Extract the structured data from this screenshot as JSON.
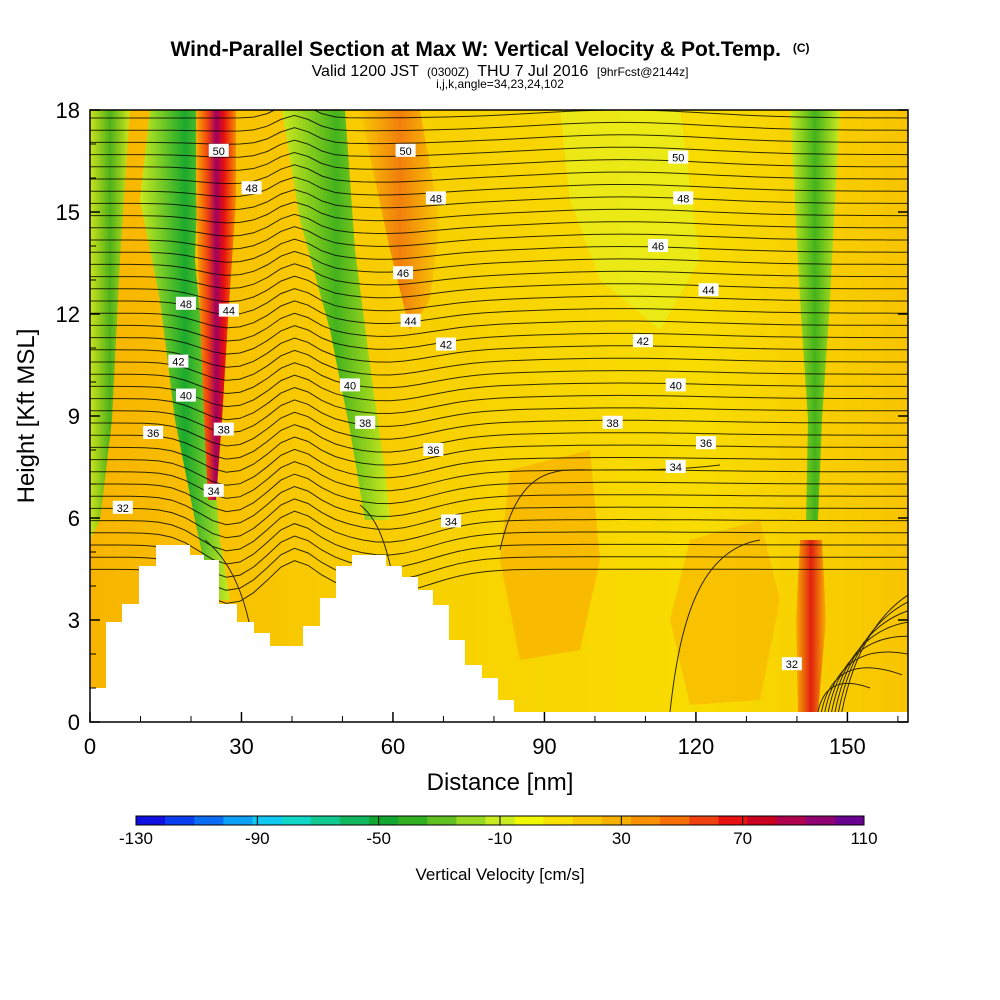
{
  "header": {
    "title": "Wind-Parallel Section at Max W: Vertical Velocity & Pot.Temp.",
    "copyright": "(C)",
    "valid_prefix": "Valid 1200 JST",
    "valid_utc": "(0300Z)",
    "valid_date": "THU 7 Jul 2016",
    "forecast": "[9hrFcst@2144z]",
    "indices": "i,j,k,angle=34,23,24,102"
  },
  "chart_data": {
    "type": "heatmap",
    "xlabel": "Distance [nm]",
    "ylabel": "Height [Kft MSL]",
    "xlim": [
      0,
      162
    ],
    "ylim": [
      0,
      18
    ],
    "x_ticks": [
      0,
      30,
      60,
      90,
      120,
      150
    ],
    "y_ticks": [
      0,
      3,
      6,
      9,
      12,
      15,
      18
    ],
    "colorbar": {
      "title": "Vertical Velocity [cm/s]",
      "min": -130,
      "max": 110,
      "step": 10,
      "tick_labels": [
        "-130",
        "-90",
        "-50",
        "-10",
        "30",
        "70",
        "110"
      ],
      "colors": [
        "#1010e0",
        "#0a3cf0",
        "#0a6cf5",
        "#0aa0f5",
        "#10c8f0",
        "#10d8c8",
        "#10c890",
        "#10b860",
        "#10a830",
        "#30b020",
        "#60c020",
        "#98d820",
        "#c8ec20",
        "#f0f800",
        "#f8e000",
        "#f8c800",
        "#f8b000",
        "#f89000",
        "#f87000",
        "#f04010",
        "#e81010",
        "#c80020",
        "#b00050",
        "#900070",
        "#6a0090"
      ]
    },
    "contour_labels": [
      {
        "text": "50",
        "x": 25.5,
        "y": 16.8
      },
      {
        "text": "48",
        "x": 32,
        "y": 15.7
      },
      {
        "text": "48",
        "x": 19,
        "y": 12.3
      },
      {
        "text": "44",
        "x": 27.5,
        "y": 12.1
      },
      {
        "text": "42",
        "x": 17.5,
        "y": 10.6
      },
      {
        "text": "40",
        "x": 19,
        "y": 9.6
      },
      {
        "text": "38",
        "x": 26.5,
        "y": 8.6
      },
      {
        "text": "36",
        "x": 12.5,
        "y": 8.5
      },
      {
        "text": "34",
        "x": 24.5,
        "y": 6.8
      },
      {
        "text": "32",
        "x": 6.5,
        "y": 6.3
      },
      {
        "text": "50",
        "x": 62.5,
        "y": 16.8
      },
      {
        "text": "48",
        "x": 68.5,
        "y": 15.4
      },
      {
        "text": "46",
        "x": 62,
        "y": 13.2
      },
      {
        "text": "44",
        "x": 63.5,
        "y": 11.8
      },
      {
        "text": "42",
        "x": 70.5,
        "y": 11.1
      },
      {
        "text": "40",
        "x": 51.5,
        "y": 9.9
      },
      {
        "text": "38",
        "x": 54.5,
        "y": 8.8
      },
      {
        "text": "36",
        "x": 68,
        "y": 8.0
      },
      {
        "text": "34",
        "x": 71.5,
        "y": 5.9
      },
      {
        "text": "50",
        "x": 116.5,
        "y": 16.6
      },
      {
        "text": "48",
        "x": 117.5,
        "y": 15.4
      },
      {
        "text": "46",
        "x": 112.5,
        "y": 14.0
      },
      {
        "text": "44",
        "x": 122.5,
        "y": 12.7
      },
      {
        "text": "42",
        "x": 109.5,
        "y": 11.2
      },
      {
        "text": "40",
        "x": 116,
        "y": 9.9
      },
      {
        "text": "38",
        "x": 103.5,
        "y": 8.8
      },
      {
        "text": "36",
        "x": 122,
        "y": 8.2
      },
      {
        "text": "34",
        "x": 116,
        "y": 7.5
      },
      {
        "text": "32",
        "x": 139,
        "y": 1.7
      }
    ]
  }
}
